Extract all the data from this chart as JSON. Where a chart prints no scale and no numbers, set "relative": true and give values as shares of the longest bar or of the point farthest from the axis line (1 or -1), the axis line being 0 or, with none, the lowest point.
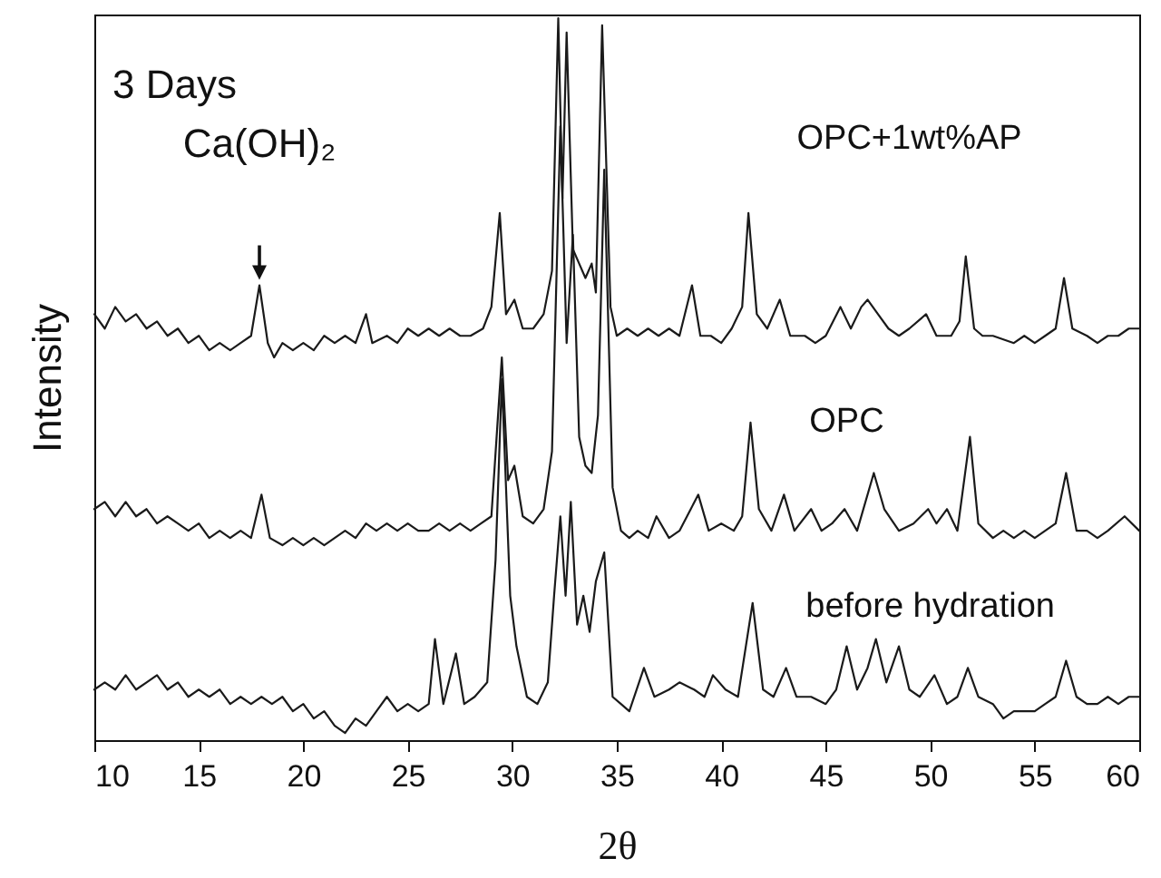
{
  "chart_data": {
    "type": "line",
    "relative": true,
    "xlabel": "2θ",
    "ylabel": "Intensity",
    "xlim": [
      10,
      60
    ],
    "xticks": [
      10,
      15,
      20,
      25,
      30,
      35,
      40,
      45,
      50,
      55,
      60
    ],
    "grid": false,
    "marker": "none",
    "line_style": "solid",
    "annotations": [
      "3 Days",
      {
        "text": "Ca(OH)₂",
        "x": 17.9,
        "y": 0.63
      }
    ],
    "series": [
      {
        "name": "OPC+1wt%AP",
        "color": "#1a1a1a",
        "x": [
          10,
          10.5,
          11,
          11.5,
          12,
          12.5,
          13,
          13.5,
          14,
          14.5,
          15,
          15.5,
          16,
          16.5,
          17,
          17.5,
          17.9,
          18.3,
          18.6,
          19,
          19.5,
          20,
          20.5,
          21,
          21.5,
          22,
          22.5,
          23,
          23.3,
          24,
          24.5,
          25,
          25.5,
          26,
          26.5,
          27,
          27.5,
          28,
          28.6,
          29,
          29.4,
          29.7,
          30.1,
          30.5,
          31,
          31.5,
          31.9,
          32.2,
          32.4,
          32.6,
          32.9,
          33.2,
          33.5,
          33.8,
          34.0,
          34.3,
          34.7,
          35,
          35.5,
          36,
          36.5,
          37,
          37.5,
          38,
          38.6,
          39,
          39.5,
          40,
          40.5,
          41,
          41.3,
          41.7,
          42.2,
          42.8,
          43.3,
          44,
          44.5,
          45,
          45.7,
          46.2,
          46.7,
          47.0,
          47.5,
          48,
          48.5,
          49,
          49.8,
          50.3,
          51,
          51.4,
          51.7,
          52.1,
          52.5,
          53,
          54,
          54.5,
          55,
          55.5,
          56,
          56.4,
          56.8,
          57.5,
          58,
          58.5,
          59,
          59.5,
          60
        ],
        "values": [
          0.59,
          0.57,
          0.6,
          0.58,
          0.59,
          0.57,
          0.58,
          0.56,
          0.57,
          0.55,
          0.56,
          0.54,
          0.55,
          0.54,
          0.55,
          0.56,
          0.63,
          0.55,
          0.53,
          0.55,
          0.54,
          0.55,
          0.54,
          0.56,
          0.55,
          0.56,
          0.55,
          0.59,
          0.55,
          0.56,
          0.55,
          0.57,
          0.56,
          0.57,
          0.56,
          0.57,
          0.56,
          0.56,
          0.57,
          0.6,
          0.73,
          0.59,
          0.61,
          0.57,
          0.57,
          0.59,
          0.65,
          1.0,
          0.75,
          0.98,
          0.68,
          0.66,
          0.64,
          0.66,
          0.62,
          0.99,
          0.6,
          0.56,
          0.57,
          0.56,
          0.57,
          0.56,
          0.57,
          0.56,
          0.63,
          0.56,
          0.56,
          0.55,
          0.57,
          0.6,
          0.73,
          0.59,
          0.57,
          0.61,
          0.56,
          0.56,
          0.55,
          0.56,
          0.6,
          0.57,
          0.6,
          0.61,
          0.59,
          0.57,
          0.56,
          0.57,
          0.59,
          0.56,
          0.56,
          0.58,
          0.67,
          0.57,
          0.56,
          0.56,
          0.55,
          0.56,
          0.55,
          0.56,
          0.57,
          0.64,
          0.57,
          0.56,
          0.55,
          0.56,
          0.56,
          0.57,
          0.57
        ]
      },
      {
        "name": "OPC",
        "color": "#1a1a1a",
        "x": [
          10,
          10.5,
          11,
          11.5,
          12,
          12.5,
          13,
          13.5,
          14,
          14.5,
          15,
          15.5,
          16,
          16.5,
          17,
          17.5,
          18,
          18.4,
          19,
          19.5,
          20,
          20.5,
          21,
          21.5,
          22,
          22.5,
          23,
          23.5,
          24,
          24.5,
          25,
          25.5,
          26,
          26.5,
          27,
          27.5,
          28,
          28.5,
          29,
          29.5,
          29.8,
          30.1,
          30.5,
          31,
          31.5,
          31.9,
          32.3,
          32.6,
          32.9,
          33.2,
          33.5,
          33.8,
          34.1,
          34.4,
          34.8,
          35.2,
          35.6,
          36,
          36.5,
          36.9,
          37.5,
          38,
          38.9,
          39.4,
          40,
          40.6,
          41.0,
          41.4,
          41.8,
          42.4,
          43.0,
          43.5,
          44.3,
          44.8,
          45.3,
          45.9,
          46.5,
          47.3,
          47.8,
          48.5,
          49.2,
          49.9,
          50.3,
          50.8,
          51.3,
          51.9,
          52.3,
          53,
          53.5,
          54,
          54.5,
          55,
          55.5,
          56,
          56.5,
          57,
          57.5,
          58,
          58.5,
          59.3,
          60
        ],
        "values": [
          0.32,
          0.33,
          0.31,
          0.33,
          0.31,
          0.32,
          0.3,
          0.31,
          0.3,
          0.29,
          0.3,
          0.28,
          0.29,
          0.28,
          0.29,
          0.28,
          0.34,
          0.28,
          0.27,
          0.28,
          0.27,
          0.28,
          0.27,
          0.28,
          0.29,
          0.28,
          0.3,
          0.29,
          0.3,
          0.29,
          0.3,
          0.29,
          0.29,
          0.3,
          0.29,
          0.3,
          0.29,
          0.3,
          0.31,
          0.53,
          0.36,
          0.38,
          0.31,
          0.3,
          0.32,
          0.4,
          0.85,
          0.55,
          0.7,
          0.42,
          0.38,
          0.37,
          0.45,
          0.79,
          0.35,
          0.29,
          0.28,
          0.29,
          0.28,
          0.31,
          0.28,
          0.29,
          0.34,
          0.29,
          0.3,
          0.29,
          0.31,
          0.44,
          0.32,
          0.29,
          0.34,
          0.29,
          0.32,
          0.29,
          0.3,
          0.32,
          0.29,
          0.37,
          0.32,
          0.29,
          0.3,
          0.32,
          0.3,
          0.32,
          0.29,
          0.42,
          0.3,
          0.28,
          0.29,
          0.28,
          0.29,
          0.28,
          0.29,
          0.3,
          0.37,
          0.29,
          0.29,
          0.28,
          0.29,
          0.31,
          0.29
        ]
      },
      {
        "name": "before hydration",
        "color": "#1a1a1a",
        "x": [
          10,
          10.5,
          11,
          11.5,
          12,
          12.5,
          13,
          13.5,
          14,
          14.5,
          15,
          15.5,
          16,
          16.5,
          17,
          17.5,
          18,
          18.5,
          19,
          19.5,
          20,
          20.5,
          21,
          21.5,
          22,
          22.5,
          23,
          23.5,
          24,
          24.5,
          25,
          25.5,
          26,
          26.3,
          26.7,
          27.3,
          27.7,
          28.2,
          28.8,
          29.2,
          29.5,
          29.9,
          30.2,
          30.7,
          31.2,
          31.7,
          32.0,
          32.3,
          32.55,
          32.8,
          33.1,
          33.4,
          33.7,
          34.0,
          34.4,
          34.8,
          35.2,
          35.6,
          36.3,
          36.8,
          37.5,
          38,
          38.7,
          39.2,
          39.6,
          40.2,
          40.8,
          41.5,
          42,
          42.5,
          43.1,
          43.6,
          44.3,
          45,
          45.5,
          46.0,
          46.5,
          47.0,
          47.4,
          47.9,
          48.5,
          49,
          49.5,
          50.2,
          50.8,
          51.3,
          51.8,
          52.3,
          53,
          53.5,
          54,
          55,
          55.5,
          56,
          56.5,
          57,
          57.5,
          58,
          58.5,
          59,
          59.5,
          60
        ],
        "values": [
          0.07,
          0.08,
          0.07,
          0.09,
          0.07,
          0.08,
          0.09,
          0.07,
          0.08,
          0.06,
          0.07,
          0.06,
          0.07,
          0.05,
          0.06,
          0.05,
          0.06,
          0.05,
          0.06,
          0.04,
          0.05,
          0.03,
          0.04,
          0.02,
          0.01,
          0.03,
          0.02,
          0.04,
          0.06,
          0.04,
          0.05,
          0.04,
          0.05,
          0.14,
          0.05,
          0.12,
          0.05,
          0.06,
          0.08,
          0.25,
          0.5,
          0.2,
          0.13,
          0.06,
          0.05,
          0.08,
          0.2,
          0.31,
          0.2,
          0.33,
          0.16,
          0.2,
          0.15,
          0.22,
          0.26,
          0.06,
          0.05,
          0.04,
          0.1,
          0.06,
          0.07,
          0.08,
          0.07,
          0.06,
          0.09,
          0.07,
          0.06,
          0.19,
          0.07,
          0.06,
          0.1,
          0.06,
          0.06,
          0.05,
          0.07,
          0.13,
          0.07,
          0.1,
          0.14,
          0.08,
          0.13,
          0.07,
          0.06,
          0.09,
          0.05,
          0.06,
          0.1,
          0.06,
          0.05,
          0.03,
          0.04,
          0.04,
          0.05,
          0.06,
          0.11,
          0.06,
          0.05,
          0.05,
          0.06,
          0.05,
          0.06,
          0.06
        ]
      }
    ]
  }
}
